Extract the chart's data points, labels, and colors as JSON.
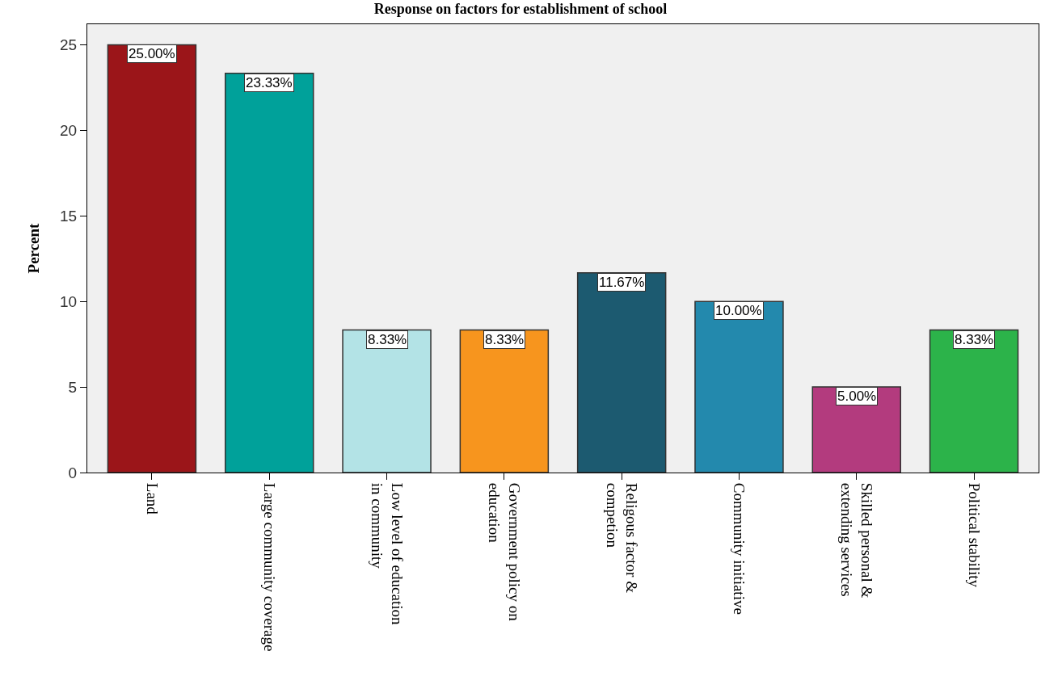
{
  "chart_data": {
    "type": "bar",
    "title": "Response on factors for establishment of school",
    "ylabel": "Percent",
    "categories": [
      "Land",
      "Large community coverage",
      "Low level of education in community",
      "Government policy on education",
      "Religous factor & competion",
      "Community initiative",
      "Skilled personal & extending services",
      "Political stability"
    ],
    "values": [
      25,
      23.33,
      8.33,
      8.33,
      11.67,
      10,
      5,
      8.33
    ],
    "colors": [
      "#9b1519",
      "#00a19a",
      "#b3e3e6",
      "#f7951e",
      "#1c5a70",
      "#2389ad",
      "#b33b7e",
      "#2cb34a"
    ],
    "value_labels": [
      "25.00%",
      "23.33%",
      "8.33%",
      "8.33%",
      "11.67%",
      "10.00%",
      "5.00%",
      "8.33%"
    ],
    "ylim": [
      0,
      26.2
    ],
    "yticks": [
      0,
      5,
      10,
      15,
      20,
      25
    ],
    "grid": false
  }
}
